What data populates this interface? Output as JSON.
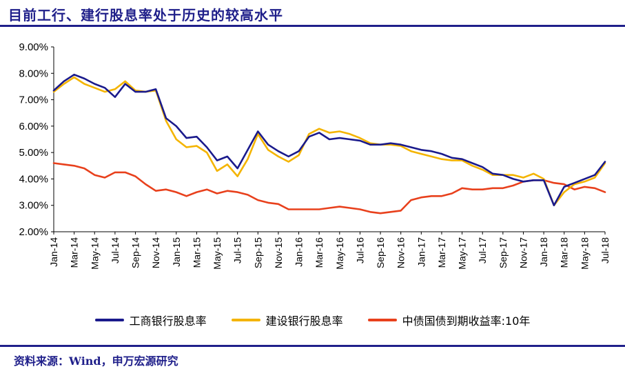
{
  "page": {
    "title": "目前工行、建行股息率处于历史的较高水平",
    "source": "资料来源：Wind，申万宏源研究"
  },
  "colors": {
    "brand": "#1f1f8a",
    "icbc": "#1a1a8c",
    "ccb": "#f4b400",
    "bond": "#e8401c"
  },
  "chart_data": {
    "type": "line",
    "title": "",
    "xlabel": "",
    "ylabel": "",
    "ylim": [
      2.0,
      9.0
    ],
    "y_ticks": [
      "2.00%",
      "3.00%",
      "4.00%",
      "5.00%",
      "6.00%",
      "7.00%",
      "8.00%",
      "9.00%"
    ],
    "x_tick_labels": [
      "Jan-14",
      "Mar-14",
      "May-14",
      "Jul-14",
      "Sep-14",
      "Nov-14",
      "Jan-15",
      "Mar-15",
      "May-15",
      "Jul-15",
      "Sep-15",
      "Nov-15",
      "Jan-16",
      "Mar-16",
      "May-16",
      "Jul-16",
      "Sep-16",
      "Nov-16",
      "Jan-17",
      "Mar-17",
      "May-17",
      "Jul-17",
      "Sep-17",
      "Nov-17",
      "Jan-18",
      "Mar-18",
      "May-18",
      "Jul-18"
    ],
    "grid": false,
    "legend_position": "bottom",
    "x": [
      "2014-01",
      "2014-02",
      "2014-03",
      "2014-04",
      "2014-05",
      "2014-06",
      "2014-07",
      "2014-08",
      "2014-09",
      "2014-10",
      "2014-11",
      "2014-12",
      "2015-01",
      "2015-02",
      "2015-03",
      "2015-04",
      "2015-05",
      "2015-06",
      "2015-07",
      "2015-08",
      "2015-09",
      "2015-10",
      "2015-11",
      "2015-12",
      "2016-01",
      "2016-02",
      "2016-03",
      "2016-04",
      "2016-05",
      "2016-06",
      "2016-07",
      "2016-08",
      "2016-09",
      "2016-10",
      "2016-11",
      "2016-12",
      "2017-01",
      "2017-02",
      "2017-03",
      "2017-04",
      "2017-05",
      "2017-06",
      "2017-07",
      "2017-08",
      "2017-09",
      "2017-10",
      "2017-11",
      "2017-12",
      "2018-01",
      "2018-02",
      "2018-03",
      "2018-04",
      "2018-05",
      "2018-06",
      "2018-07"
    ],
    "series": [
      {
        "name": "工商银行股息率",
        "color_key": "icbc",
        "values": [
          7.35,
          7.7,
          7.95,
          7.8,
          7.6,
          7.45,
          7.1,
          7.6,
          7.3,
          7.3,
          7.4,
          6.3,
          6.0,
          5.55,
          5.6,
          5.2,
          4.7,
          4.85,
          4.4,
          5.1,
          5.8,
          5.3,
          5.05,
          4.85,
          5.05,
          5.6,
          5.75,
          5.5,
          5.55,
          5.5,
          5.45,
          5.3,
          5.3,
          5.35,
          5.3,
          5.2,
          5.1,
          5.05,
          4.95,
          4.8,
          4.75,
          4.6,
          4.45,
          4.2,
          4.15,
          4.0,
          3.9,
          3.95,
          3.95,
          3.0,
          3.7,
          3.85,
          4.0,
          4.15,
          4.65
        ]
      },
      {
        "name": "建设银行股息率",
        "color_key": "ccb",
        "values": [
          7.3,
          7.6,
          7.85,
          7.6,
          7.45,
          7.3,
          7.4,
          7.7,
          7.35,
          7.3,
          7.35,
          6.2,
          5.5,
          5.2,
          5.25,
          5.0,
          4.3,
          4.55,
          4.1,
          4.75,
          5.7,
          5.1,
          4.85,
          4.65,
          4.9,
          5.7,
          5.9,
          5.75,
          5.8,
          5.7,
          5.55,
          5.35,
          5.3,
          5.3,
          5.25,
          5.05,
          4.95,
          4.85,
          4.75,
          4.7,
          4.7,
          4.5,
          4.35,
          4.15,
          4.15,
          4.15,
          4.05,
          4.2,
          4.0,
          3.0,
          3.5,
          3.8,
          3.9,
          4.05,
          4.6
        ]
      },
      {
        "name": "中债国债到期收益率:10年",
        "color_key": "bond",
        "values": [
          4.6,
          4.55,
          4.5,
          4.4,
          4.15,
          4.05,
          4.25,
          4.25,
          4.1,
          3.8,
          3.55,
          3.6,
          3.5,
          3.35,
          3.5,
          3.6,
          3.45,
          3.55,
          3.5,
          3.4,
          3.2,
          3.1,
          3.05,
          2.85,
          2.85,
          2.85,
          2.85,
          2.9,
          2.95,
          2.9,
          2.85,
          2.75,
          2.7,
          2.75,
          2.8,
          3.2,
          3.3,
          3.35,
          3.35,
          3.45,
          3.65,
          3.6,
          3.6,
          3.65,
          3.65,
          3.75,
          3.9,
          3.95,
          3.95,
          3.85,
          3.8,
          3.6,
          3.7,
          3.65,
          3.5
        ]
      }
    ]
  }
}
